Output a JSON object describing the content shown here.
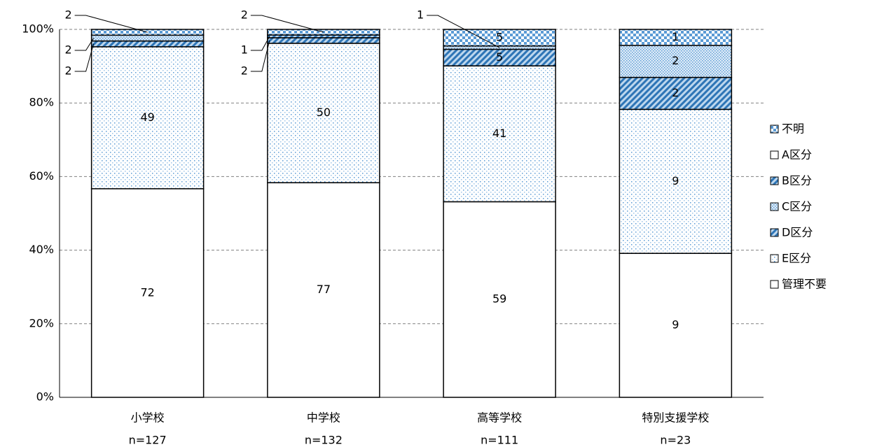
{
  "chart_data": {
    "type": "stacked-bar-100",
    "categories": [
      [
        "小学校",
        "n=127"
      ],
      [
        "中学校",
        "n=132"
      ],
      [
        "高等学校",
        "n=111"
      ],
      [
        "特別支援学校",
        "n=23"
      ]
    ],
    "series": [
      {
        "name": "管理不要",
        "color": "#ffffff",
        "pattern": "none",
        "label_color": "#595959",
        "values": [
          72,
          77,
          59,
          9
        ]
      },
      {
        "name": "E区分",
        "color": "#5b9bd5",
        "pattern": "dots",
        "values": [
          49,
          50,
          41,
          9
        ]
      },
      {
        "name": "D区分",
        "color": "#2e75b6",
        "pattern": "hatch",
        "values": [
          2,
          2,
          5,
          2
        ]
      },
      {
        "name": "C区分",
        "color": "#5b9bd5",
        "pattern": "dense-dots",
        "values": [
          2,
          null,
          1,
          2
        ]
      },
      {
        "name": "B区分",
        "color": "#2e75b6",
        "pattern": "hatch",
        "values": [
          null,
          1,
          null,
          null
        ]
      },
      {
        "name": "A区分",
        "color": "#ffffff",
        "pattern": "none",
        "values": [
          null,
          null,
          null,
          null
        ]
      },
      {
        "name": "不明",
        "color": "#2e75b6",
        "pattern": "checker",
        "values": [
          2,
          2,
          5,
          1
        ]
      }
    ],
    "ylim": [
      0,
      100
    ],
    "yticks": [
      {
        "value": 0,
        "label": "0%"
      },
      {
        "value": 20,
        "label": "20%"
      },
      {
        "value": 40,
        "label": "40%"
      },
      {
        "value": 60,
        "label": "60%"
      },
      {
        "value": 80,
        "label": "80%"
      },
      {
        "value": 100,
        "label": "100%"
      }
    ],
    "grid": true,
    "legend": "right"
  }
}
